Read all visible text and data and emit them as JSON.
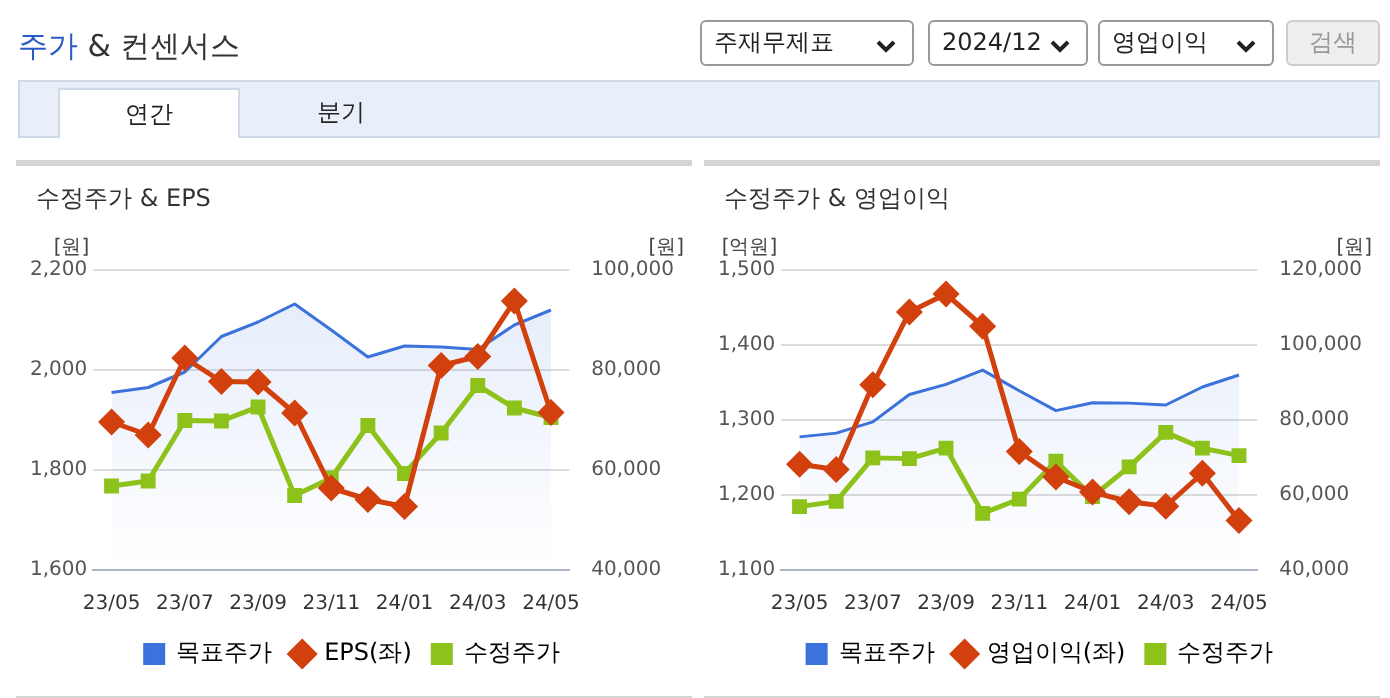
{
  "chart_data": [
    {
      "type": "other",
      "title": "주가 & 컨센서스",
      "annotations": [
        "주재무제표",
        "2024/12",
        "영업이익",
        "검색",
        "연간",
        "분기"
      ]
    },
    {
      "type": "line",
      "title": "수정주가 & EPS",
      "ylabel": "[원]",
      "y2label": "[원]",
      "categories": [
        "23/05",
        null,
        "23/07",
        null,
        "23/09",
        null,
        "23/11",
        null,
        "24/01",
        null,
        "24/03",
        null,
        "24/05"
      ],
      "series": [
        {
          "name": "목표주가",
          "type": "area",
          "axis": "y2",
          "marker": "none",
          "color": "#3b72db",
          "values": [
            75500,
            76500,
            79600,
            86700,
            89600,
            93200,
            88000,
            82600,
            84800,
            84600,
            84100,
            89000,
            92000
          ]
        },
        {
          "name": "EPS(좌)",
          "type": "line",
          "marker": "diamond",
          "color": "#d2400e",
          "values": [
            1896,
            1870,
            2024,
            1977,
            1976,
            1914,
            1764,
            1741,
            1727,
            2009,
            2027,
            2138,
            1915
          ]
        },
        {
          "name": "수정주가",
          "type": "line",
          "axis": "y2",
          "marker": "square",
          "color": "#8cc21a",
          "values": [
            56800,
            57800,
            69900,
            69800,
            72600,
            54900,
            58400,
            68900,
            59300,
            67400,
            76900,
            72400,
            70500
          ]
        }
      ],
      "ylim": [
        1600,
        2200
      ],
      "yticks": [
        {
          "value": 1600,
          "label": "1,600"
        },
        {
          "value": 1800,
          "label": "1,800"
        },
        {
          "value": 2000,
          "label": "2,000"
        },
        {
          "value": 2200,
          "label": "2,200"
        }
      ],
      "y2lim": [
        40000,
        100000
      ],
      "y2ticks": [
        {
          "value": 40000,
          "label": "40,000"
        },
        {
          "value": 60000,
          "label": "60,000"
        },
        {
          "value": 80000,
          "label": "80,000"
        },
        {
          "value": 100000,
          "label": "100,000"
        }
      ],
      "grid": "y",
      "legend": "bottom"
    },
    {
      "type": "line",
      "title": "수정주가 & 영업이익",
      "ylabel": "[억원]",
      "y2label": "[원]",
      "categories": [
        "23/05",
        null,
        "23/07",
        null,
        "23/09",
        null,
        "23/11",
        null,
        "24/01",
        null,
        "24/03",
        null,
        "24/05"
      ],
      "series": [
        {
          "name": "목표주가",
          "type": "area",
          "axis": "y2",
          "marker": "none",
          "color": "#3b72db",
          "values": [
            75500,
            76500,
            79500,
            86800,
            89500,
            93300,
            87800,
            82500,
            84600,
            84500,
            84000,
            88800,
            92000
          ]
        },
        {
          "name": "영업이익(좌)",
          "type": "line",
          "marker": "diamond",
          "color": "#d2400e",
          "values": [
            1241,
            1234,
            1347,
            1444,
            1468,
            1425,
            1258,
            1224,
            1204,
            1191,
            1185,
            1229,
            1166
          ]
        },
        {
          "name": "수정주가",
          "type": "line",
          "axis": "y2",
          "marker": "square",
          "color": "#8cc21a",
          "values": [
            56900,
            58300,
            69900,
            69700,
            72500,
            55100,
            58900,
            69000,
            59600,
            67500,
            76700,
            72500,
            70500
          ]
        }
      ],
      "ylim": [
        1100,
        1500
      ],
      "yticks": [
        {
          "value": 1100,
          "label": "1,100"
        },
        {
          "value": 1200,
          "label": "1,200"
        },
        {
          "value": 1300,
          "label": "1,300"
        },
        {
          "value": 1400,
          "label": "1,400"
        },
        {
          "value": 1500,
          "label": "1,500"
        }
      ],
      "y2lim": [
        40000,
        120000
      ],
      "y2ticks": [
        {
          "value": 40000,
          "label": "40,000"
        },
        {
          "value": 60000,
          "label": "60,000"
        },
        {
          "value": 80000,
          "label": "80,000"
        },
        {
          "value": 100000,
          "label": "100,000"
        },
        {
          "value": 120000,
          "label": "120,000"
        }
      ],
      "grid": "y",
      "legend": "bottom"
    }
  ]
}
